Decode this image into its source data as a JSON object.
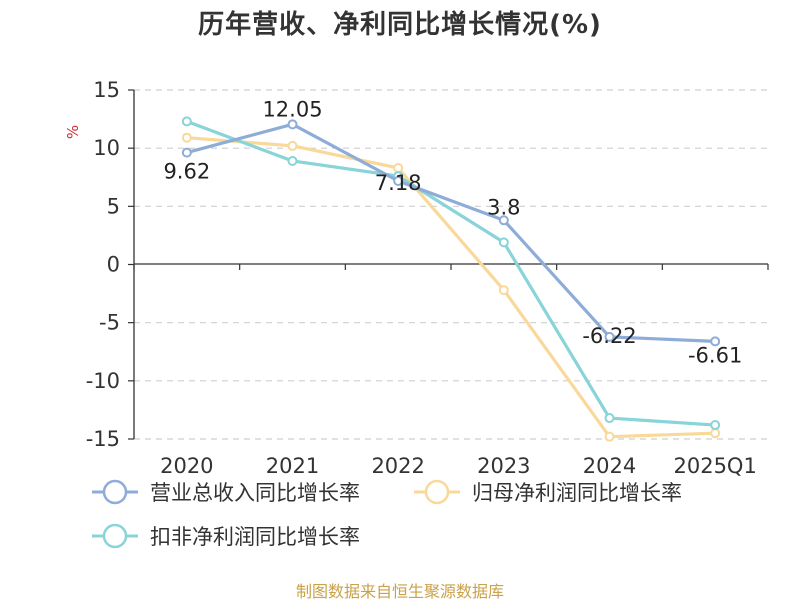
{
  "title": "历年营收、净利同比增长情况(%)",
  "source": "制图数据来自恒生聚源数据库",
  "chart_data": {
    "type": "line",
    "unit": "%",
    "categories": [
      "2020",
      "2021",
      "2022",
      "2023",
      "2024",
      "2025Q1"
    ],
    "ylim": [
      -15,
      15
    ],
    "yticks": [
      15,
      10,
      5,
      0,
      -5,
      -10,
      -15
    ],
    "grid": true,
    "legend_position": "bottom",
    "series": [
      {
        "name": "营业总收入同比增长率",
        "color": "#8eacd8",
        "values": [
          9.62,
          12.05,
          7.18,
          3.8,
          -6.22,
          -6.61
        ],
        "labels": [
          "9.62",
          "12.05",
          "7.18",
          "3.8",
          "-6.22",
          "-6.61"
        ]
      },
      {
        "name": "归母净利润同比增长率",
        "color": "#f8d99a",
        "values": [
          10.9,
          10.2,
          8.3,
          -2.2,
          -14.8,
          -14.5
        ]
      },
      {
        "name": "扣非净利润同比增长率",
        "color": "#88d4d8",
        "values": [
          12.3,
          8.9,
          7.6,
          1.9,
          -13.2,
          -13.8
        ]
      }
    ]
  }
}
